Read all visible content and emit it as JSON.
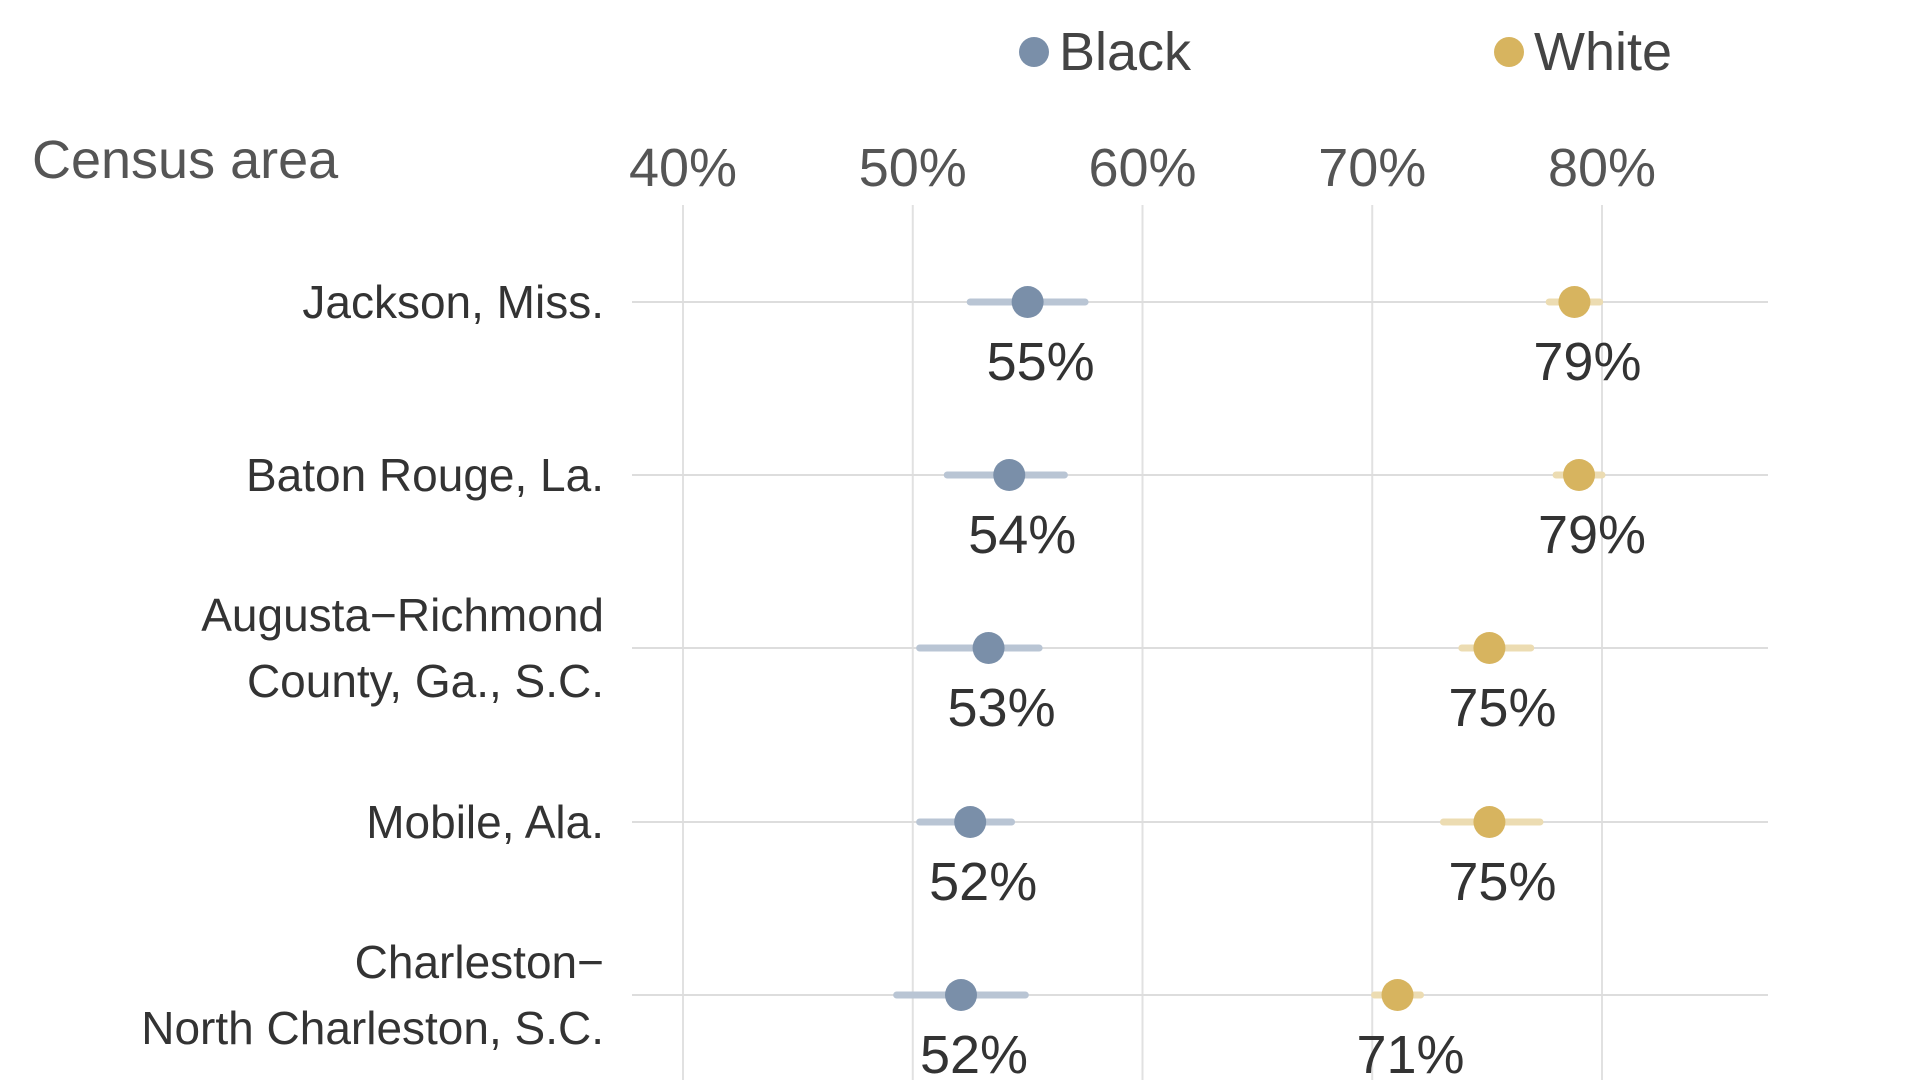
{
  "chart_data": {
    "type": "scatter",
    "ylabel": "Census area",
    "x_ticks": [
      "40%",
      "50%",
      "60%",
      "70%",
      "80%"
    ],
    "x_tick_values": [
      40,
      50,
      60,
      70,
      80
    ],
    "xlim": [
      37,
      88
    ],
    "legend_position": "top",
    "categories": [
      [
        "Jackson, Miss."
      ],
      [
        "Baton Rouge, La."
      ],
      [
        "Augusta−Richmond",
        "County, Ga., S.C."
      ],
      [
        "Mobile, Ala."
      ],
      [
        "Charleston−",
        "North Charleston, S.C."
      ]
    ],
    "series": [
      {
        "name": "Black",
        "color": "#7a8fa9",
        "range_color": "#b9c5d4",
        "values": [
          55.0,
          54.2,
          53.3,
          52.5,
          52.1
        ],
        "labels": [
          "55%",
          "54%",
          "53%",
          "52%",
          "52%"
        ],
        "range_low": [
          52.5,
          51.5,
          50.3,
          50.3,
          49.3
        ],
        "range_high": [
          57.5,
          56.6,
          55.5,
          54.3,
          54.9
        ]
      },
      {
        "name": "White",
        "color": "#d7b45f",
        "range_color": "#ecdcb2",
        "values": [
          78.8,
          79.0,
          75.1,
          75.1,
          71.1
        ],
        "labels": [
          "79%",
          "79%",
          "75%",
          "75%",
          "71%"
        ],
        "range_low": [
          77.7,
          78.0,
          73.9,
          73.1,
          70.1
        ],
        "range_high": [
          79.9,
          80.0,
          76.9,
          77.3,
          72.1
        ]
      }
    ],
    "grid": true
  }
}
